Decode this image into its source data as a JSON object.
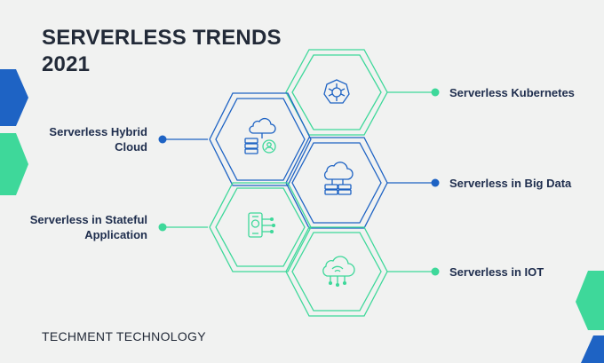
{
  "title_line1": "SERVERLESS TRENDS",
  "title_line2": "2021",
  "footer": "TECHMENT TECHNOLOGY",
  "colors": {
    "background": "#f1f2f1",
    "blue": "#1e63c4",
    "green": "#3ed89a",
    "text": "#1e2d4d"
  },
  "trends_left": [
    {
      "line1": "Serverless Hybrid",
      "line2": "Cloud",
      "color": "blue",
      "icon": "cloud-database-user-icon"
    },
    {
      "line1": "Serverless in Stateful",
      "line2": "Application",
      "color": "green",
      "icon": "mobile-network-icon"
    }
  ],
  "trends_right": [
    {
      "label": "Serverless Kubernetes",
      "color": "green",
      "icon": "kubernetes-helm-icon"
    },
    {
      "label": "Serverless in Big Data",
      "color": "blue",
      "icon": "cloud-server-icon"
    },
    {
      "label": "Serverless in IOT",
      "color": "green",
      "icon": "cloud-wifi-icon"
    }
  ]
}
